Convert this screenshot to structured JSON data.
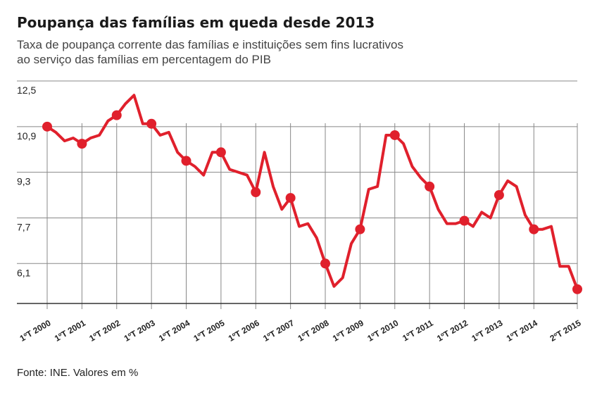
{
  "title": "Poupança das famílias em queda desde 2013",
  "subtitle": [
    "Taxa de poupança corrente das famílias e instituições sem fins lucrativos",
    "ao serviço das famílias em percentagem do PIB"
  ],
  "source": "Fonte: INE. Valores em %",
  "colors": {
    "line": "#e0202c",
    "grid": "#888888",
    "axis": "#333333",
    "text": "#222222"
  },
  "chart_data": {
    "type": "line",
    "title": "Poupança das famílias em queda desde 2013",
    "xlabel": "",
    "ylabel": "",
    "ylim": [
      4.7,
      12.5
    ],
    "yticks": [
      12.5,
      10.9,
      9.3,
      7.7,
      6.1
    ],
    "ytick_labels": [
      "12,5",
      "10,9",
      "9,3",
      "7,7",
      "6,1"
    ],
    "xtick_labels": [
      "1ºT 2000",
      "1ºT 2001",
      "1ºT 2002",
      "1ºT 2003",
      "1ºT 2004",
      "1ºT 2005",
      "1ºT 2006",
      "1ºT 2007",
      "1ºT 2008",
      "1ºT 2009",
      "1ºT 2010",
      "1ºT 2011",
      "1ºT 2012",
      "1ºT 2013",
      "1ºT 2014",
      "2ºT 2015"
    ],
    "xtick_periods": [
      "2000Q1",
      "2001Q1",
      "2002Q1",
      "2003Q1",
      "2004Q1",
      "2005Q1",
      "2006Q1",
      "2007Q1",
      "2008Q1",
      "2009Q1",
      "2010Q1",
      "2011Q1",
      "2012Q1",
      "2013Q1",
      "2014Q1",
      "2015Q2"
    ],
    "marker_periods": [
      "2000Q1",
      "2001Q1",
      "2002Q1",
      "2003Q1",
      "2004Q1",
      "2005Q1",
      "2006Q1",
      "2007Q1",
      "2008Q1",
      "2009Q1",
      "2010Q1",
      "2011Q1",
      "2012Q1",
      "2013Q1",
      "2014Q1",
      "2015Q2"
    ],
    "grid": true,
    "legend": "none",
    "series": [
      {
        "x": [
          "2000Q1",
          "2000Q2",
          "2000Q3",
          "2000Q4",
          "2001Q1",
          "2001Q2",
          "2001Q3",
          "2001Q4",
          "2002Q1",
          "2002Q2",
          "2002Q3",
          "2002Q4",
          "2003Q1",
          "2003Q2",
          "2003Q3",
          "2003Q4",
          "2004Q1",
          "2004Q2",
          "2004Q3",
          "2004Q4",
          "2005Q1",
          "2005Q2",
          "2005Q3",
          "2005Q4",
          "2006Q1",
          "2006Q2",
          "2006Q3",
          "2006Q4",
          "2007Q1",
          "2007Q2",
          "2007Q3",
          "2007Q4",
          "2008Q1",
          "2008Q2",
          "2008Q3",
          "2008Q4",
          "2009Q1",
          "2009Q2",
          "2009Q3",
          "2009Q4",
          "2010Q1",
          "2010Q2",
          "2010Q3",
          "2010Q4",
          "2011Q1",
          "2011Q2",
          "2011Q3",
          "2011Q4",
          "2012Q1",
          "2012Q2",
          "2012Q3",
          "2012Q4",
          "2013Q1",
          "2013Q2",
          "2013Q3",
          "2013Q4",
          "2014Q1",
          "2014Q2",
          "2014Q3",
          "2014Q4",
          "2015Q1",
          "2015Q2"
        ],
        "values": [
          10.9,
          10.7,
          10.4,
          10.5,
          10.3,
          10.5,
          10.6,
          11.1,
          11.3,
          11.7,
          12.0,
          11.0,
          11.0,
          10.6,
          10.7,
          10.0,
          9.7,
          9.5,
          9.2,
          10.0,
          10.0,
          9.4,
          9.3,
          9.2,
          8.6,
          10.0,
          8.8,
          8.0,
          8.4,
          7.4,
          7.5,
          7.0,
          6.1,
          5.3,
          5.6,
          6.8,
          7.3,
          8.7,
          8.8,
          10.6,
          10.6,
          10.3,
          9.5,
          9.1,
          8.8,
          8.0,
          7.5,
          7.5,
          7.6,
          7.4,
          7.9,
          7.7,
          8.5,
          9.0,
          8.8,
          7.8,
          7.3,
          7.3,
          7.4,
          6.0,
          6.0,
          5.2
        ]
      }
    ]
  }
}
